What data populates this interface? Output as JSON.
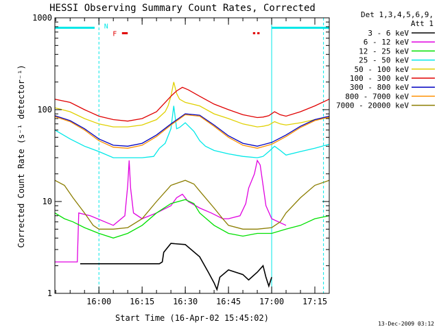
{
  "chart_data": {
    "type": "line",
    "title": "HESSI Observing Summary Count Rates, Corrected",
    "xlabel": "Start Time (16-Apr-02 15:45:02)",
    "ylabel": "Corrected Count Rate (s⁻¹ detector⁻¹)",
    "footer_date": "13-Dec-2009 03:12",
    "y_scale": "log",
    "ylim": [
      1,
      1000
    ],
    "y_ticks": [
      {
        "label": "1",
        "value": 1
      },
      {
        "label": "10",
        "value": 10
      },
      {
        "label": "100",
        "value": 100
      },
      {
        "label": "1000",
        "value": 1000
      }
    ],
    "xlim": [
      -0.3,
      95
    ],
    "x_ticks": [
      {
        "label": "16:00",
        "value": 15
      },
      {
        "label": "16:15",
        "value": 30
      },
      {
        "label": "16:30",
        "value": 45
      },
      {
        "label": "16:45",
        "value": 60
      },
      {
        "label": "17:00",
        "value": 75
      },
      {
        "label": "17:15",
        "value": 90
      }
    ],
    "legend": {
      "header_lines": [
        "Det 1,3,4,5,6,9,",
        "Att 1"
      ],
      "placement": "right-outside"
    },
    "series": [
      {
        "name": "3 - 6 keV",
        "color": "#000000",
        "x": [
          -0.3,
          8,
          8.5,
          30,
          36,
          37,
          37.5,
          40,
          45,
          50,
          53,
          55,
          56,
          57,
          60,
          65,
          67,
          70,
          72,
          73,
          74,
          75
        ],
        "y": [
          null,
          null,
          2.1,
          2.1,
          2.1,
          2.2,
          2.8,
          3.5,
          3.4,
          2.5,
          1.7,
          1.3,
          1.1,
          1.5,
          1.8,
          1.6,
          1.4,
          1.7,
          2.0,
          1.5,
          1.2,
          1.5
        ]
      },
      {
        "name": "6 - 12 keV",
        "color": "#e000e0",
        "x": [
          -0.3,
          7.5,
          8,
          12,
          20,
          24,
          25,
          25.5,
          26,
          27,
          30,
          35,
          40,
          42,
          44,
          46,
          50,
          54,
          58,
          60,
          64,
          66,
          67,
          69,
          70,
          71,
          72,
          73,
          75,
          80
        ],
        "y": [
          2.2,
          2.2,
          7.5,
          7.0,
          5.5,
          7.0,
          15,
          28,
          14,
          7.5,
          6.5,
          7.5,
          9.0,
          11,
          12,
          10,
          8.5,
          7.5,
          6.5,
          6.5,
          7.0,
          9.5,
          14,
          20,
          28,
          25,
          15,
          9,
          6.5,
          5.5
        ]
      },
      {
        "name": "12 - 25 keV",
        "color": "#00e000",
        "x": [
          -0.3,
          3,
          6,
          10,
          15,
          20,
          25,
          30,
          35,
          40,
          45,
          48,
          50,
          55,
          60,
          65,
          70,
          75,
          80,
          85,
          90,
          95
        ],
        "y": [
          7.5,
          6.5,
          6.0,
          5.2,
          4.5,
          4.0,
          4.5,
          5.5,
          7.5,
          9.5,
          10.5,
          9.5,
          7.5,
          5.5,
          4.5,
          4.2,
          4.5,
          4.5,
          5.0,
          5.5,
          6.5,
          7.0
        ]
      },
      {
        "name": "25 - 50 keV",
        "color": "#00e8e8",
        "x": [
          -0.3,
          5,
          10,
          15,
          20,
          25,
          30,
          34,
          36,
          38,
          40,
          41,
          42,
          43,
          45,
          48,
          50,
          52,
          55,
          60,
          65,
          70,
          72,
          74,
          76,
          78,
          80,
          85,
          90,
          95
        ],
        "y": [
          60,
          48,
          40,
          35,
          30,
          30,
          30,
          31,
          38,
          43,
          62,
          110,
          62,
          64,
          72,
          58,
          46,
          40,
          36,
          33,
          31,
          30,
          31,
          35,
          40,
          36,
          32,
          35,
          38,
          42
        ]
      },
      {
        "name": "50 - 100 keV",
        "color": "#e0d000",
        "x": [
          -0.3,
          5,
          10,
          15,
          20,
          25,
          30,
          35,
          38,
          39,
          40,
          41,
          42,
          43,
          45,
          50,
          55,
          60,
          65,
          70,
          72,
          74,
          76,
          78,
          80,
          85,
          90,
          95
        ],
        "y": [
          105,
          95,
          80,
          70,
          65,
          65,
          68,
          78,
          95,
          110,
          140,
          200,
          150,
          130,
          120,
          110,
          90,
          80,
          70,
          65,
          66,
          68,
          74,
          70,
          68,
          72,
          78,
          82
        ]
      },
      {
        "name": "100 - 300 keV",
        "color": "#e00000",
        "x": [
          -0.3,
          5,
          10,
          15,
          20,
          25,
          30,
          35,
          38,
          40,
          42,
          44,
          46,
          50,
          55,
          60,
          65,
          70,
          72,
          74,
          76,
          78,
          80,
          85,
          90,
          95
        ],
        "y": [
          130,
          120,
          100,
          85,
          78,
          75,
          80,
          95,
          120,
          140,
          160,
          175,
          165,
          140,
          115,
          100,
          88,
          82,
          83,
          86,
          95,
          88,
          85,
          95,
          110,
          130
        ]
      },
      {
        "name": "300 - 800 keV",
        "color": "#0000c0",
        "x": [
          -0.3,
          5,
          10,
          15,
          20,
          25,
          30,
          35,
          40,
          45,
          50,
          55,
          60,
          65,
          70,
          75,
          80,
          85,
          90,
          95
        ],
        "y": [
          86,
          76,
          62,
          48,
          41,
          40,
          43,
          53,
          70,
          90,
          87,
          68,
          52,
          43,
          40,
          44,
          53,
          66,
          78,
          85
        ]
      },
      {
        "name": "800 - 7000 keV",
        "color": "#ff9000",
        "x": [
          -0.3,
          5,
          10,
          15,
          20,
          25,
          30,
          35,
          40,
          45,
          50,
          55,
          60,
          65,
          70,
          75,
          80,
          85,
          90,
          95
        ],
        "y": [
          84,
          74,
          60,
          46,
          39,
          38,
          41,
          51,
          68,
          88,
          85,
          66,
          50,
          41,
          38,
          42,
          51,
          64,
          76,
          83
        ]
      },
      {
        "name": "7000 - 20000 keV",
        "color": "#8b7d00",
        "x": [
          -0.3,
          3,
          6,
          10,
          13,
          15,
          20,
          25,
          30,
          35,
          40,
          45,
          48,
          50,
          55,
          58,
          60,
          65,
          70,
          75,
          78,
          80,
          85,
          90,
          95
        ],
        "y": [
          17,
          15,
          11,
          7.5,
          5.5,
          5.0,
          5.0,
          5.2,
          6.5,
          10,
          15,
          17,
          15.5,
          13,
          8.5,
          6.5,
          5.5,
          5.0,
          5.0,
          5.2,
          6,
          7.5,
          11,
          15,
          17
        ]
      }
    ],
    "annotations": {
      "status_bar": {
        "color": "#00e8e8",
        "y": 780,
        "segments": [
          [
            -0.3,
            13.5
          ],
          [
            75,
            95
          ]
        ]
      },
      "markers": [
        {
          "label": "N",
          "x": 17.5,
          "y": 820,
          "color": "#00e8e8"
        },
        {
          "label": "F",
          "x": 20.5,
          "y": 680,
          "color": "#e00000"
        }
      ],
      "flag_bars": {
        "color": "#e00000",
        "y": 680,
        "segments": [
          [
            23,
            25
          ],
          [
            68.5,
            69.3
          ],
          [
            70,
            70.8
          ]
        ]
      },
      "vlines_dashed": {
        "color": "#00e8e8",
        "x": [
          15,
          93
        ]
      },
      "vlines_solid": {
        "color": "#00e8e8",
        "x": [
          -0.3,
          75
        ]
      }
    }
  }
}
